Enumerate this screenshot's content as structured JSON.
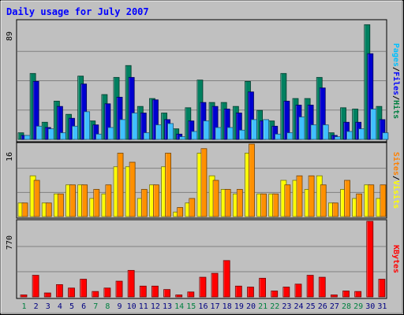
{
  "chart_data": [
    {
      "type": "bar",
      "title": "Daily usage for July 2007",
      "ymax_label": "89",
      "ylabels": [
        "Pages",
        "/",
        "Files",
        "/",
        "Hits"
      ],
      "ylabel_colors": [
        "#00c0ff",
        "#000000",
        "#0000ff",
        "#000000",
        "#008040"
      ],
      "categories": [
        "1",
        "2",
        "3",
        "4",
        "5",
        "6",
        "7",
        "8",
        "9",
        "10",
        "11",
        "12",
        "13",
        "14",
        "15",
        "16",
        "17",
        "18",
        "19",
        "20",
        "21",
        "22",
        "23",
        "24",
        "25",
        "26",
        "27",
        "28",
        "29",
        "30",
        "31"
      ],
      "weekend_days": [
        "1",
        "7",
        "8",
        "14",
        "15",
        "21",
        "22",
        "28",
        "29"
      ],
      "weekend_color": "#008040",
      "weekday_color": "#000080",
      "ylim": [
        0,
        89
      ],
      "series": [
        {
          "name": "Hits",
          "color": "#008060",
          "values": [
            5,
            50,
            13,
            29,
            19,
            48,
            14,
            34,
            47,
            56,
            25,
            31,
            20,
            8,
            24,
            45,
            28,
            28,
            25,
            44,
            22,
            14,
            50,
            31,
            31,
            47,
            5,
            24,
            23,
            87,
            25
          ]
        },
        {
          "name": "Files",
          "color": "#0000d0",
          "values": [
            3,
            44,
            9,
            25,
            16,
            42,
            11,
            27,
            32,
            47,
            20,
            30,
            15,
            4,
            14,
            28,
            25,
            23,
            20,
            36,
            14,
            10,
            29,
            26,
            26,
            39,
            3,
            13,
            13,
            65,
            15
          ]
        },
        {
          "name": "Pages",
          "color": "#40c0ff",
          "values": [
            3,
            10,
            8,
            5,
            10,
            21,
            4,
            9,
            15,
            20,
            5,
            11,
            12,
            2,
            6,
            14,
            9,
            9,
            7,
            15,
            15,
            4,
            5,
            17,
            11,
            11,
            2,
            6,
            8,
            23,
            5
          ]
        }
      ]
    },
    {
      "type": "bar",
      "ymax_label": "16",
      "ylabels": [
        "Sites",
        "/",
        "Visits"
      ],
      "ylabel_colors": [
        "#ff8000",
        "#000000",
        "#ffff00"
      ],
      "categories": [
        "1",
        "2",
        "3",
        "4",
        "5",
        "6",
        "7",
        "8",
        "9",
        "10",
        "11",
        "12",
        "13",
        "14",
        "15",
        "16",
        "17",
        "18",
        "19",
        "20",
        "21",
        "22",
        "23",
        "24",
        "25",
        "26",
        "27",
        "28",
        "29",
        "30",
        "31"
      ],
      "ylim": [
        0,
        16
      ],
      "series": [
        {
          "name": "Visits",
          "color": "#ffff00",
          "values": [
            3,
            9,
            3,
            5,
            7,
            7,
            4,
            5,
            11,
            11,
            4,
            7,
            11,
            1,
            3,
            14,
            9,
            6,
            5,
            14,
            5,
            5,
            8,
            8,
            6,
            9,
            3,
            6,
            4,
            7,
            4
          ]
        },
        {
          "name": "Sites",
          "color": "#ff9000",
          "values": [
            3,
            8,
            3,
            5,
            7,
            7,
            6,
            7,
            14,
            12,
            6,
            7,
            14,
            2,
            4,
            15,
            8,
            6,
            6,
            16,
            5,
            5,
            7,
            9,
            9,
            7,
            3,
            8,
            5,
            7,
            7
          ]
        }
      ]
    },
    {
      "type": "bar",
      "ymax_label": "770",
      "ylabels": [
        "KBytes"
      ],
      "ylabel_colors": [
        "#ff0000"
      ],
      "categories": [
        "1",
        "2",
        "3",
        "4",
        "5",
        "6",
        "7",
        "8",
        "9",
        "10",
        "11",
        "12",
        "13",
        "14",
        "15",
        "16",
        "17",
        "18",
        "19",
        "20",
        "21",
        "22",
        "23",
        "24",
        "25",
        "26",
        "27",
        "28",
        "29",
        "30",
        "31"
      ],
      "ylim": [
        0,
        770
      ],
      "series": [
        {
          "name": "KBytes",
          "color": "#ff0000",
          "values": [
            20,
            220,
            40,
            125,
            90,
            180,
            55,
            90,
            160,
            270,
            110,
            110,
            75,
            20,
            50,
            200,
            240,
            370,
            110,
            100,
            190,
            60,
            100,
            130,
            220,
            200,
            20,
            60,
            55,
            770,
            180
          ]
        }
      ]
    }
  ]
}
